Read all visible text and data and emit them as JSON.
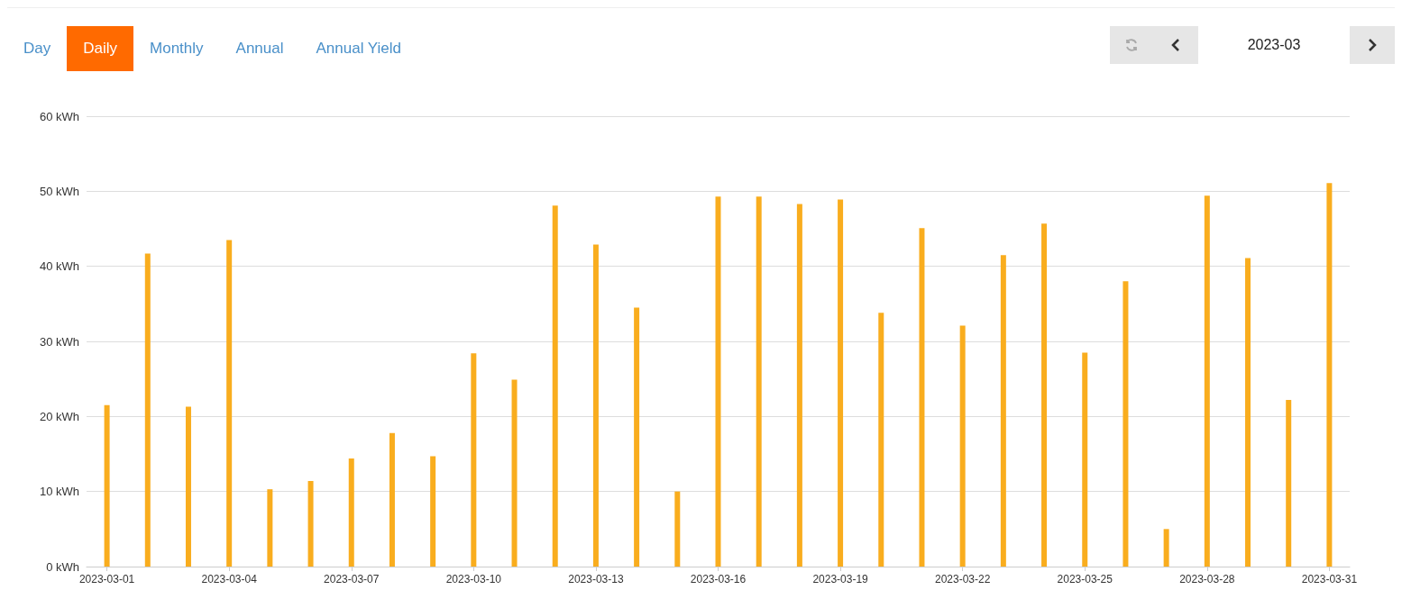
{
  "chart_data": {
    "type": "bar",
    "categories": [
      "2023-03-01",
      null,
      null,
      "2023-03-04",
      null,
      null,
      "2023-03-07",
      null,
      null,
      "2023-03-10",
      null,
      null,
      "2023-03-13",
      null,
      null,
      "2023-03-16",
      null,
      null,
      "2023-03-19",
      null,
      null,
      "2023-03-22",
      null,
      null,
      "2023-03-25",
      null,
      null,
      "2023-03-28",
      null,
      null,
      "2023-03-31"
    ],
    "values": [
      21.5,
      41.7,
      21.3,
      43.5,
      10.3,
      11.4,
      14.4,
      17.8,
      14.7,
      28.4,
      24.9,
      48.1,
      42.9,
      34.5,
      10.0,
      49.3,
      49.3,
      48.3,
      48.9,
      33.8,
      45.1,
      32.1,
      41.5,
      45.7,
      28.5,
      38.0,
      5.0,
      49.4,
      41.1,
      22.2,
      51.1
    ],
    "color": "#f9ad1e",
    "ylim": [
      0,
      60
    ],
    "yticks": [
      {
        "value": 0,
        "label": "0 kWh"
      },
      {
        "value": 10,
        "label": "10 kWh"
      },
      {
        "value": 20,
        "label": "20 kWh"
      },
      {
        "value": 30,
        "label": "30 kWh"
      },
      {
        "value": 40,
        "label": "40 kWh"
      },
      {
        "value": 50,
        "label": "50 kWh"
      },
      {
        "value": 60,
        "label": "60 kWh"
      }
    ],
    "grid": "y",
    "annotations": [
      "Day",
      "Daily",
      "Monthly",
      "Annual",
      "Annual Yield",
      "2023-03"
    ]
  }
}
